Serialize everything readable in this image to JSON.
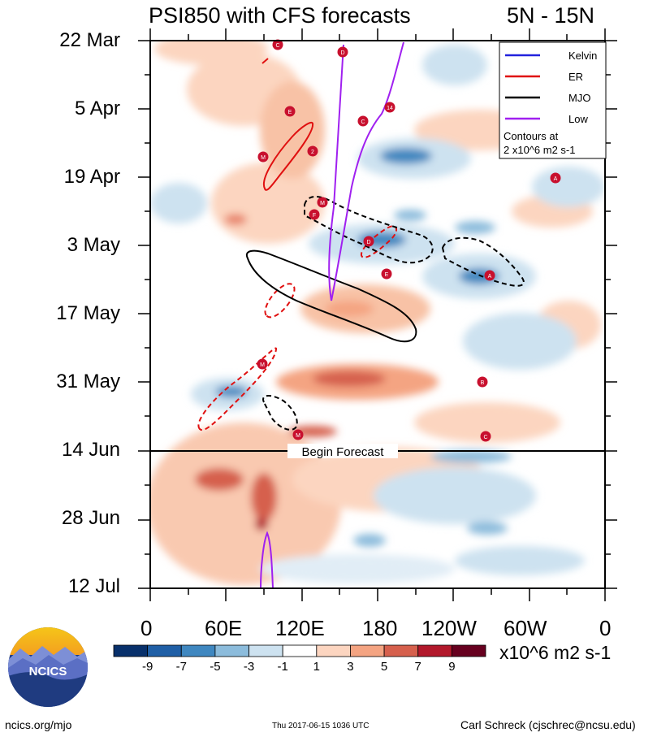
{
  "chart_data": {
    "type": "heatmap",
    "title": "PSI850 with CFS forecasts",
    "region": "5N - 15N",
    "y_ticks": [
      "22 Mar",
      "5 Apr",
      "19 Apr",
      "3 May",
      "17 May",
      "31 May",
      "14 Jun",
      "28 Jun",
      "12 Jul"
    ],
    "x_ticks": [
      "0",
      "60E",
      "120E",
      "180",
      "120W",
      "60W",
      "0"
    ],
    "forecast_label": "Begin Forecast",
    "legend": [
      {
        "name": "Kelvin",
        "color": "#2222dd"
      },
      {
        "name": "ER",
        "color": "#e01010"
      },
      {
        "name": "MJO",
        "color": "#000000"
      },
      {
        "name": "Low",
        "color": "#a020f0"
      }
    ],
    "contour_note_line1": "Contours at",
    "contour_note_line2": "2 x10^6 m2 s-1",
    "colorbar": {
      "values": [
        "-9",
        "-7",
        "-5",
        "-3",
        "-1",
        "1",
        "3",
        "5",
        "7",
        "9"
      ],
      "colors": [
        "#08306b",
        "#1f5fa6",
        "#3f87c0",
        "#8cbcdc",
        "#cde2f0",
        "#ffffff",
        "#fcd5c0",
        "#f4a482",
        "#d6604d",
        "#b2182b",
        "#67001f"
      ],
      "units": "x10^6 m2 s-1"
    },
    "storm_markers": [
      "C",
      "D",
      "E",
      "C",
      "14",
      "M",
      "2",
      "A",
      "M",
      "F",
      "D",
      "E",
      "A",
      "M",
      "B",
      "M",
      "C"
    ]
  },
  "footer": {
    "left": "ncics.org/mjo",
    "center": "Thu 2017-06-15 1036 UTC",
    "right": "Carl Schreck (cjschrec@ncsu.edu)"
  },
  "logo": {
    "text": "NCICS"
  }
}
